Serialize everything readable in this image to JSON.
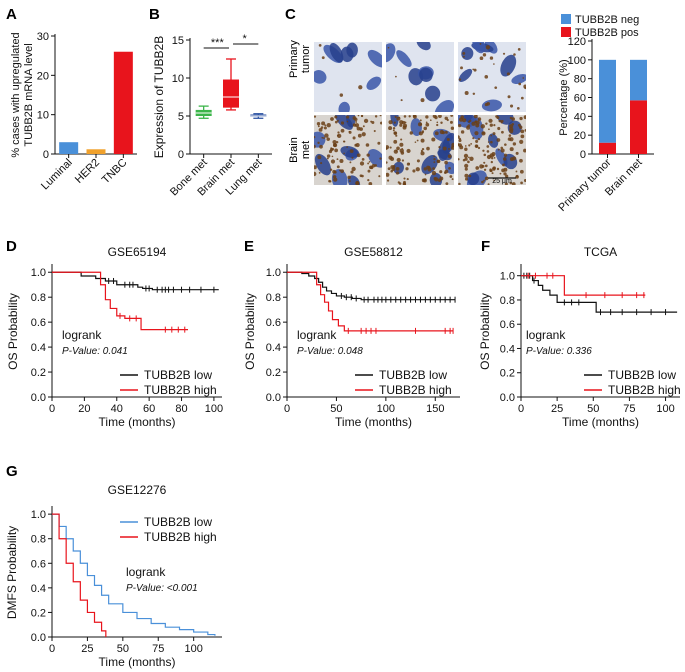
{
  "panels": {
    "A": {
      "letter": "A"
    },
    "B": {
      "letter": "B"
    },
    "C": {
      "letter": "C"
    },
    "D": {
      "letter": "D"
    },
    "E": {
      "letter": "E"
    },
    "F": {
      "letter": "F"
    },
    "G": {
      "letter": "G"
    }
  },
  "micrograph": {
    "row_labels": [
      [
        "Primary",
        "tumor"
      ],
      [
        "Brain",
        "met"
      ]
    ],
    "scale_bar_label": "25 μm",
    "palette": {
      "nucleus": "#3a56a8",
      "nucleus_dark": "#27408c",
      "background": "#dfe4ef",
      "stain": "#6b3f16"
    }
  },
  "colors": {
    "red": "#e8141c",
    "blue": "#4a90d9",
    "orange": "#f0a12c",
    "green": "#3cb54a",
    "navy": "#2f55a4",
    "black": "#111111"
  },
  "chart_data": [
    {
      "panel": "A",
      "type": "bar",
      "categories": [
        "Luminal",
        "HER2",
        "TNBC"
      ],
      "values": [
        3,
        1.2,
        26
      ],
      "bar_colors": [
        "#4a90d9",
        "#f0a12c",
        "#e8141c"
      ],
      "ylabel": [
        "% cases with upregulated",
        "TUBB2B mRNA level"
      ],
      "ylim": [
        0,
        30
      ],
      "yticks": [
        0,
        10,
        20,
        30
      ]
    },
    {
      "panel": "B",
      "type": "box",
      "categories": [
        "Bone met",
        "Brain met",
        "Lung met"
      ],
      "boxes": [
        {
          "min": 4.7,
          "q1": 5.0,
          "median": 5.4,
          "q3": 5.8,
          "max": 6.3,
          "color": "#3cb54a"
        },
        {
          "min": 5.8,
          "q1": 6.1,
          "median": 7.5,
          "q3": 9.8,
          "max": 12.5,
          "color": "#e8141c"
        },
        {
          "min": 4.7,
          "q1": 4.9,
          "median": 5.0,
          "q3": 5.2,
          "max": 5.3,
          "color": "#2f55a4"
        }
      ],
      "significance": [
        {
          "from": 0,
          "to": 1,
          "label": "***"
        },
        {
          "from": 1,
          "to": 2,
          "label": "*"
        }
      ],
      "ylabel": "Expression of TUBB2B",
      "ylim": [
        0,
        15
      ],
      "yticks": [
        0,
        5,
        10,
        15
      ]
    },
    {
      "panel": "C",
      "type": "bar",
      "categories": [
        "Primary tumor",
        "Brain met"
      ],
      "series": [
        {
          "name": "TUBB2B neg",
          "values": [
            88,
            43
          ],
          "color": "#4a90d9"
        },
        {
          "name": "TUBB2B pos",
          "values": [
            12,
            57
          ],
          "color": "#e8141c"
        }
      ],
      "stacked": true,
      "ylabel": "Percentage (%)",
      "ylim": [
        0,
        120
      ],
      "yticks": [
        0,
        20,
        40,
        60,
        80,
        100,
        120
      ]
    },
    {
      "panel": "D",
      "type": "line",
      "title": "GSE65194",
      "xlabel": "Time (months)",
      "ylabel": "OS Probability",
      "xlim": [
        0,
        105
      ],
      "xticks": [
        0,
        20,
        40,
        60,
        80,
        100
      ],
      "ylim": [
        0,
        1.05
      ],
      "yticks": [
        0.0,
        0.2,
        0.4,
        0.6,
        0.8,
        1.0
      ],
      "annotation": {
        "test": "logrank",
        "p_value": "P-Value: 0.041"
      },
      "legend": [
        "TUBB2B low",
        "TUBB2B high"
      ],
      "series": [
        {
          "name": "TUBB2B low",
          "color": "#111111",
          "x": [
            0,
            18,
            27,
            33,
            40,
            53,
            56,
            62,
            103
          ],
          "y": [
            1.0,
            0.97,
            0.95,
            0.93,
            0.9,
            0.88,
            0.87,
            0.86,
            0.86
          ],
          "censor_x": [
            35,
            38,
            45,
            48,
            50,
            58,
            60,
            65,
            68,
            70,
            72,
            75,
            80,
            85,
            92,
            100
          ]
        },
        {
          "name": "TUBB2B high",
          "color": "#e8141c",
          "x": [
            0,
            30,
            33,
            36,
            40,
            45,
            55,
            84
          ],
          "y": [
            1.0,
            0.9,
            0.78,
            0.71,
            0.65,
            0.63,
            0.54,
            0.54
          ],
          "censor_x": [
            42,
            48,
            52,
            70,
            74,
            78,
            82
          ]
        }
      ]
    },
    {
      "panel": "E",
      "type": "line",
      "title": "GSE58812",
      "xlabel": "Time (months)",
      "ylabel": "OS Probability",
      "xlim": [
        0,
        175
      ],
      "xticks": [
        0,
        50,
        100,
        150
      ],
      "ylim": [
        0,
        1.05
      ],
      "yticks": [
        0.0,
        0.2,
        0.4,
        0.6,
        0.8,
        1.0
      ],
      "annotation": {
        "test": "logrank",
        "p_value": "P-Value: 0.048"
      },
      "legend": [
        "TUBB2B low",
        "TUBB2B high"
      ],
      "series": [
        {
          "name": "TUBB2B low",
          "color": "#111111",
          "x": [
            0,
            15,
            22,
            28,
            32,
            36,
            40,
            45,
            50,
            58,
            66,
            75,
            170
          ],
          "y": [
            1.0,
            0.99,
            0.97,
            0.95,
            0.92,
            0.88,
            0.85,
            0.83,
            0.81,
            0.8,
            0.79,
            0.78,
            0.78
          ],
          "censor_x": [
            55,
            60,
            65,
            70,
            78,
            82,
            88,
            92,
            96,
            100,
            105,
            110,
            115,
            120,
            125,
            130,
            135,
            140,
            145,
            150,
            155,
            160,
            165,
            170
          ]
        },
        {
          "name": "TUBB2B high",
          "color": "#e8141c",
          "x": [
            0,
            30,
            34,
            38,
            42,
            46,
            52,
            58,
            168
          ],
          "y": [
            1.0,
            0.9,
            0.82,
            0.76,
            0.69,
            0.62,
            0.57,
            0.53,
            0.53
          ],
          "censor_x": [
            62,
            75,
            80,
            85,
            90,
            130,
            160,
            165,
            168
          ]
        }
      ]
    },
    {
      "panel": "F",
      "type": "line",
      "title": "TCGA",
      "xlabel": "Time (months)",
      "ylabel": "OS Probability",
      "xlim": [
        0,
        110
      ],
      "xticks": [
        0,
        25,
        50,
        75,
        100
      ],
      "ylim": [
        0,
        1.08
      ],
      "yticks": [
        0.0,
        0.2,
        0.4,
        0.6,
        0.8,
        1.0
      ],
      "annotation": {
        "test": "logrank",
        "p_value": "P-Value: 0.336"
      },
      "legend": [
        "TUBB2B low",
        "TUBB2B high"
      ],
      "series": [
        {
          "name": "TUBB2B low",
          "color": "#111111",
          "x": [
            0,
            8,
            12,
            15,
            20,
            25,
            52,
            60,
            108
          ],
          "y": [
            1.0,
            0.96,
            0.92,
            0.88,
            0.84,
            0.78,
            0.7,
            0.7,
            0.7
          ],
          "censor_x": [
            2,
            4,
            6,
            9,
            30,
            35,
            40,
            55,
            62,
            70,
            80,
            90,
            100
          ]
        },
        {
          "name": "TUBB2B high",
          "color": "#e8141c",
          "x": [
            0,
            30,
            86
          ],
          "y": [
            1.0,
            0.84,
            0.84
          ],
          "censor_x": [
            5,
            10,
            18,
            22,
            45,
            58,
            70,
            80,
            85
          ]
        }
      ]
    },
    {
      "panel": "G",
      "type": "line",
      "title": "GSE12276",
      "xlabel": "Time (months)",
      "ylabel": "DMFS Probability",
      "xlim": [
        0,
        120
      ],
      "xticks": [
        0,
        25,
        50,
        75,
        100
      ],
      "ylim": [
        0,
        1.05
      ],
      "yticks": [
        0.0,
        0.2,
        0.4,
        0.6,
        0.8,
        1.0
      ],
      "annotation": {
        "test": "logrank",
        "p_value": "P-Value: <0.001"
      },
      "legend": [
        "TUBB2B low",
        "TUBB2B high"
      ],
      "series": [
        {
          "name": "TUBB2B low",
          "color": "#4a90d9",
          "x": [
            0,
            5,
            10,
            15,
            20,
            25,
            30,
            35,
            40,
            50,
            60,
            70,
            80,
            90,
            100,
            110,
            115
          ],
          "y": [
            1.0,
            0.9,
            0.8,
            0.7,
            0.6,
            0.5,
            0.42,
            0.34,
            0.27,
            0.2,
            0.15,
            0.11,
            0.08,
            0.06,
            0.04,
            0.02,
            0.01
          ]
        },
        {
          "name": "TUBB2B high",
          "color": "#e8141c",
          "x": [
            0,
            5,
            10,
            15,
            20,
            25,
            30,
            35,
            38
          ],
          "y": [
            1.0,
            0.8,
            0.6,
            0.45,
            0.3,
            0.2,
            0.12,
            0.05,
            0.0
          ]
        }
      ]
    }
  ]
}
